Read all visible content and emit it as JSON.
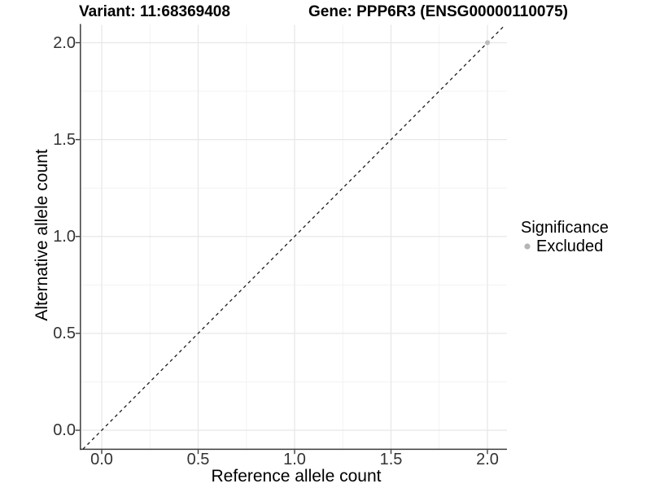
{
  "titles": {
    "variant": "Variant: 11:68369408",
    "gene": "Gene: PPP6R3 (ENSG00000110075)"
  },
  "x_axis": {
    "label": "Reference allele count",
    "tick_labels": [
      "0.0",
      "0.5",
      "1.0",
      "1.5",
      "2.0"
    ]
  },
  "y_axis": {
    "label": "Alternative allele count",
    "tick_labels": [
      "0.0",
      "0.5",
      "1.0",
      "1.5",
      "2.0"
    ]
  },
  "legend": {
    "title": "Significance",
    "item_label": "Excluded",
    "item_color": "#b5b5b5"
  },
  "colors": {
    "grid_major": "#e7e7e7",
    "grid_minor": "#f3f3f3",
    "axis_line": "#3d3d3d",
    "tick_mark": "#3d3d3d",
    "dashed_line": "#1c1c1c",
    "point": "#bdbdbd"
  },
  "chart_data": {
    "type": "scatter",
    "title": "Variant: 11:68369408 | Gene: PPP6R3 (ENSG00000110075)",
    "xlabel": "Reference allele count",
    "ylabel": "Alternative allele count",
    "xlim": [
      -0.11,
      2.1
    ],
    "ylim": [
      -0.1,
      2.09
    ],
    "x_ticks": [
      0.0,
      0.5,
      1.0,
      1.5,
      2.0
    ],
    "y_ticks": [
      0.0,
      0.5,
      1.0,
      1.5,
      2.0
    ],
    "grid": "major-and-minor",
    "legend_position": "right",
    "series": [
      {
        "name": "Excluded",
        "color": "#bdbdbd",
        "points": [
          [
            2.0,
            2.0
          ]
        ]
      }
    ],
    "annotations": [
      {
        "type": "abline",
        "style": "dashed",
        "slope": 1,
        "intercept": 0,
        "meaning": "y = x identity line"
      }
    ]
  }
}
